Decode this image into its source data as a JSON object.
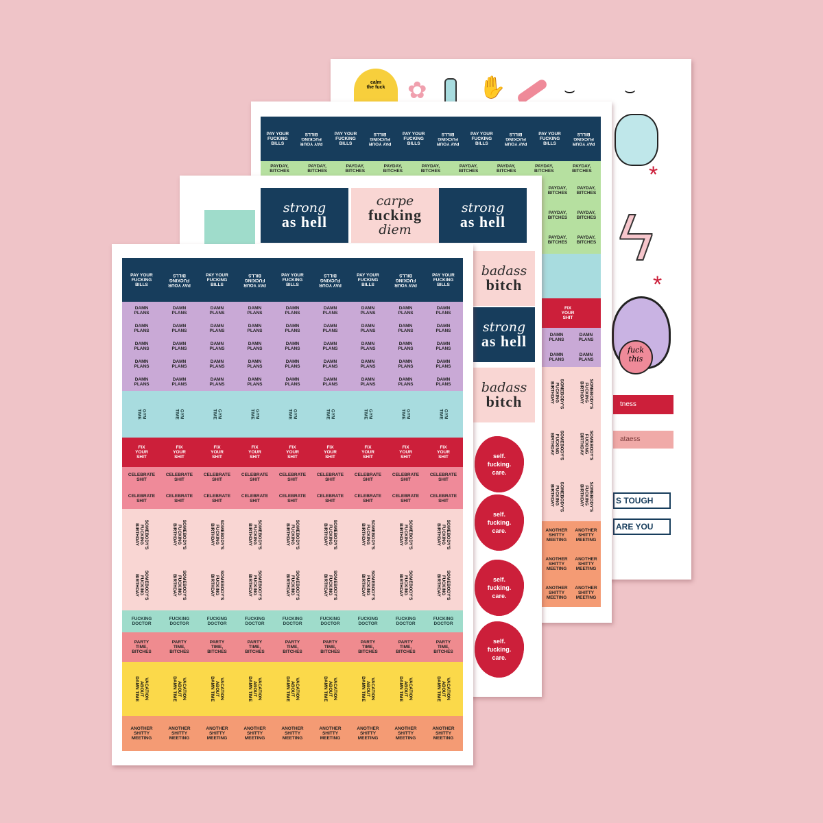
{
  "colors": {
    "background": "#efc4c8",
    "navy": "#173d5c",
    "lavender": "#c9a9d6",
    "teal": "#a8dcdf",
    "red": "#cc1f3a",
    "pink": "#ef8a99",
    "light_pink": "#f9d6d3",
    "mint": "#9fdccb",
    "salmon": "#ef8b8f",
    "yellow": "#fbd94a",
    "orange": "#f49b74",
    "green": "#b6e0a0"
  },
  "sheet1": {
    "bands": [
      {
        "key": "bills",
        "color": "#173d5c",
        "text_color": "#ffffff",
        "label": "PAY YOUR\nFUCKING\nBILLS",
        "rows": 1,
        "rotated": false
      },
      {
        "key": "plans",
        "color": "#c9a9d6",
        "text_color": "#222222",
        "label": "DAMN\nPLANS",
        "rows": 5,
        "rotated": false
      },
      {
        "key": "teal",
        "color": "#a8dcdf",
        "text_color": "#1c3a3a",
        "label": "GYM\nTIME",
        "rows": 1,
        "rotated": true
      },
      {
        "key": "fix",
        "color": "#cc1f3a",
        "text_color": "#ffffff",
        "label": "FIX\nYOUR\nSHIT",
        "rows": 1,
        "rotated": false
      },
      {
        "key": "celebrate",
        "color": "#ef8a99",
        "text_color": "#222222",
        "label": "CELEBRATE\nSHIT",
        "rows": 2,
        "rotated": false
      },
      {
        "key": "birthday",
        "color": "#f9d6d3",
        "text_color": "#111111",
        "label": "SOMEBODY'S\nFUCKING\nBIRTHDAY",
        "rows": 2,
        "rotated": true
      },
      {
        "key": "doctor",
        "color": "#9fdccb",
        "text_color": "#1c3a3a",
        "label": "FUCKING\nDOCTOR",
        "rows": 1,
        "rotated": false
      },
      {
        "key": "party",
        "color": "#ef8b8f",
        "text_color": "#222222",
        "label": "PARTY\nTIME,\nBITCHES",
        "rows": 1,
        "rotated": false
      },
      {
        "key": "vacation",
        "color": "#fbd94a",
        "text_color": "#111111",
        "label": "VACATION\nABOUT\nDAMN TIME",
        "rows": 1,
        "rotated": true
      },
      {
        "key": "meeting",
        "color": "#f49b74",
        "text_color": "#222222",
        "label": "ANOTHER\nSHITTY\nMEETING",
        "rows": 1,
        "rotated": false
      }
    ]
  },
  "sheet2": {
    "tiles": [
      {
        "top": "strong",
        "bottom": "as hell",
        "color": "#173d5c",
        "text_color": "#ffffff"
      },
      {
        "top": "carpe",
        "bottom": "fucking",
        "extra": "diem",
        "color": "#f9d6d3",
        "text_color": "#2a2a2a"
      },
      {
        "top": "strong",
        "bottom": "as hell",
        "color": "#173d5c",
        "text_color": "#ffffff"
      }
    ],
    "side_tiles": [
      {
        "top": "badass",
        "bottom": "bitch",
        "color": "#f9d6d3",
        "text_color": "#2a2a2a"
      },
      {
        "top": "strong",
        "bottom": "as hell",
        "color": "#173d5c",
        "text_color": "#ffffff"
      },
      {
        "top": "badass",
        "bottom": "bitch",
        "color": "#f9d6d3",
        "text_color": "#2a2a2a"
      }
    ],
    "flower_label": "self.\nfucking.\ncare."
  },
  "sheet3": {
    "bills_label": "PAY YOUR\nFUCKING\nBILLS",
    "payday_label": "PAYDAY,\nBITCHES",
    "fix_label": "FIX\nYOUR\nSHIT",
    "plans_label": "DAMN\nPLANS",
    "birthday_label": "SOMEBODY'S\nFUCKING\nBIRTHDAY",
    "meeting_label": "ANOTHER\nSHITTY\nMEETING"
  },
  "sheet4": {
    "sun_text": "calm\nthe fuck",
    "lips_text": "fuck\nthis",
    "banner_top": "S TOUGH",
    "banner_bottom": "ARE YOU",
    "stroke1": "tness",
    "stroke2": "ataess"
  }
}
